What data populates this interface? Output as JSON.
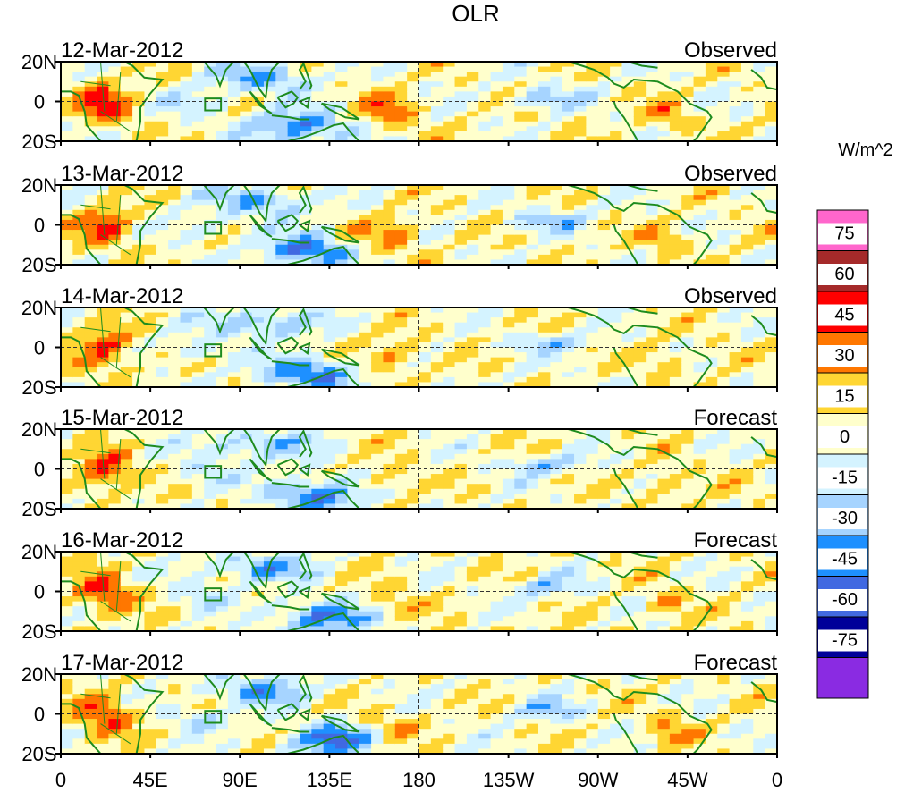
{
  "chart_data": {
    "type": "heatmap",
    "title": "OLR",
    "units": "W/m^2",
    "x_axis": {
      "tick_labels": [
        "0",
        "45E",
        "90E",
        "135E",
        "180",
        "135W",
        "90W",
        "45W",
        "0"
      ],
      "tick_longitudes": [
        0,
        45,
        90,
        135,
        180,
        225,
        270,
        315,
        360
      ],
      "xlim": [
        0,
        360
      ]
    },
    "y_axis": {
      "tick_labels": [
        "20N",
        "0",
        "20S"
      ],
      "tick_latitudes": [
        20,
        0,
        -20
      ],
      "ylim": [
        -20,
        20
      ]
    },
    "panels": [
      {
        "date": "12-Mar-2012",
        "kind": "Observed"
      },
      {
        "date": "13-Mar-2012",
        "kind": "Observed"
      },
      {
        "date": "14-Mar-2012",
        "kind": "Observed"
      },
      {
        "date": "15-Mar-2012",
        "kind": "Forecast"
      },
      {
        "date": "16-Mar-2012",
        "kind": "Forecast"
      },
      {
        "date": "17-Mar-2012",
        "kind": "Forecast"
      }
    ],
    "colorbar": {
      "labels": [
        "75",
        "60",
        "45",
        "30",
        "15",
        "0",
        "-15",
        "-30",
        "-45",
        "-60",
        "-75"
      ],
      "levels": [
        75,
        60,
        45,
        30,
        15,
        0,
        -15,
        -30,
        -45,
        -60,
        -75
      ],
      "colors": [
        "#ff66cc",
        "#a52a2a",
        "#ff0000",
        "#ff7700",
        "#ffd633",
        "#ffffcc",
        "#d4f3ff",
        "#a6d4ff",
        "#1e90ff",
        "#4169e1",
        "#000099",
        "#8a2be2"
      ]
    }
  }
}
